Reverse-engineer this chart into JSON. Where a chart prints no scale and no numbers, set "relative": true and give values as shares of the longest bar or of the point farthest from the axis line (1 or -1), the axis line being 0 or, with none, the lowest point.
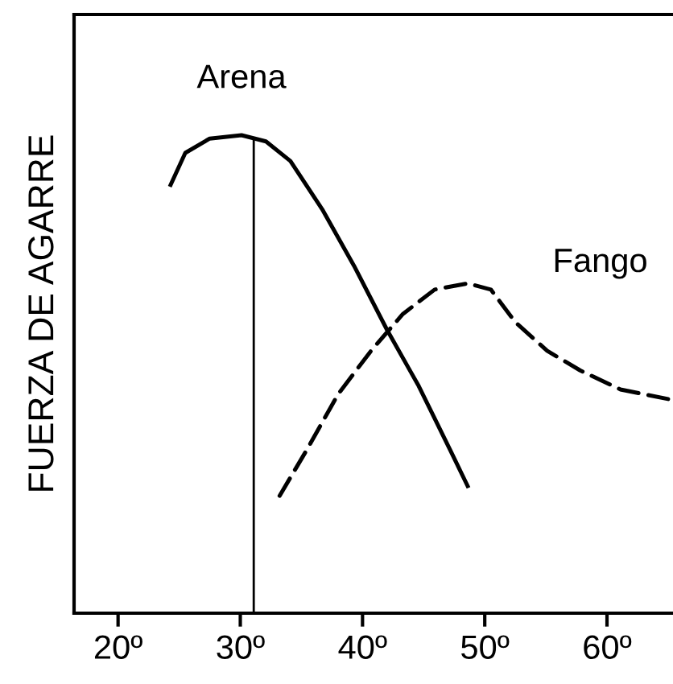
{
  "chart_data": {
    "type": "line",
    "relative": true,
    "ylabel": "FUERZA DE AGARRE",
    "xlim": [
      16.4,
      65.4
    ],
    "xticks": [
      {
        "value": 20,
        "label": "20º"
      },
      {
        "value": 30,
        "label": "30º"
      },
      {
        "value": 40,
        "label": "40º"
      },
      {
        "value": 50,
        "label": "50º"
      },
      {
        "value": 60,
        "label": "60º"
      }
    ],
    "series": [
      {
        "name": "Arena",
        "color": "#000000",
        "line_style": "solid",
        "x": [
          24.3,
          25.5,
          27.5,
          30.1,
          32.1,
          34.1,
          36.7,
          39.3,
          42.0,
          44.6,
          47.2,
          48.6
        ],
        "values": [
          0.896,
          0.963,
          0.993,
          1.0,
          0.987,
          0.946,
          0.845,
          0.727,
          0.593,
          0.475,
          0.34,
          0.266
        ]
      },
      {
        "name": "Fango",
        "color": "#000000",
        "line_style": "dashed",
        "x": [
          32.9,
          35.4,
          38.0,
          40.7,
          43.3,
          45.9,
          48.6,
          50.5,
          52.5,
          55.1,
          57.8,
          61.1,
          65.0
        ],
        "values": [
          0.232,
          0.34,
          0.458,
          0.549,
          0.626,
          0.677,
          0.69,
          0.677,
          0.609,
          0.549,
          0.508,
          0.468,
          0.448
        ]
      }
    ],
    "ref_lines": [
      {
        "axis": "x",
        "value": 31.1,
        "color": "#000000"
      }
    ],
    "legend": false,
    "grid": false
  }
}
